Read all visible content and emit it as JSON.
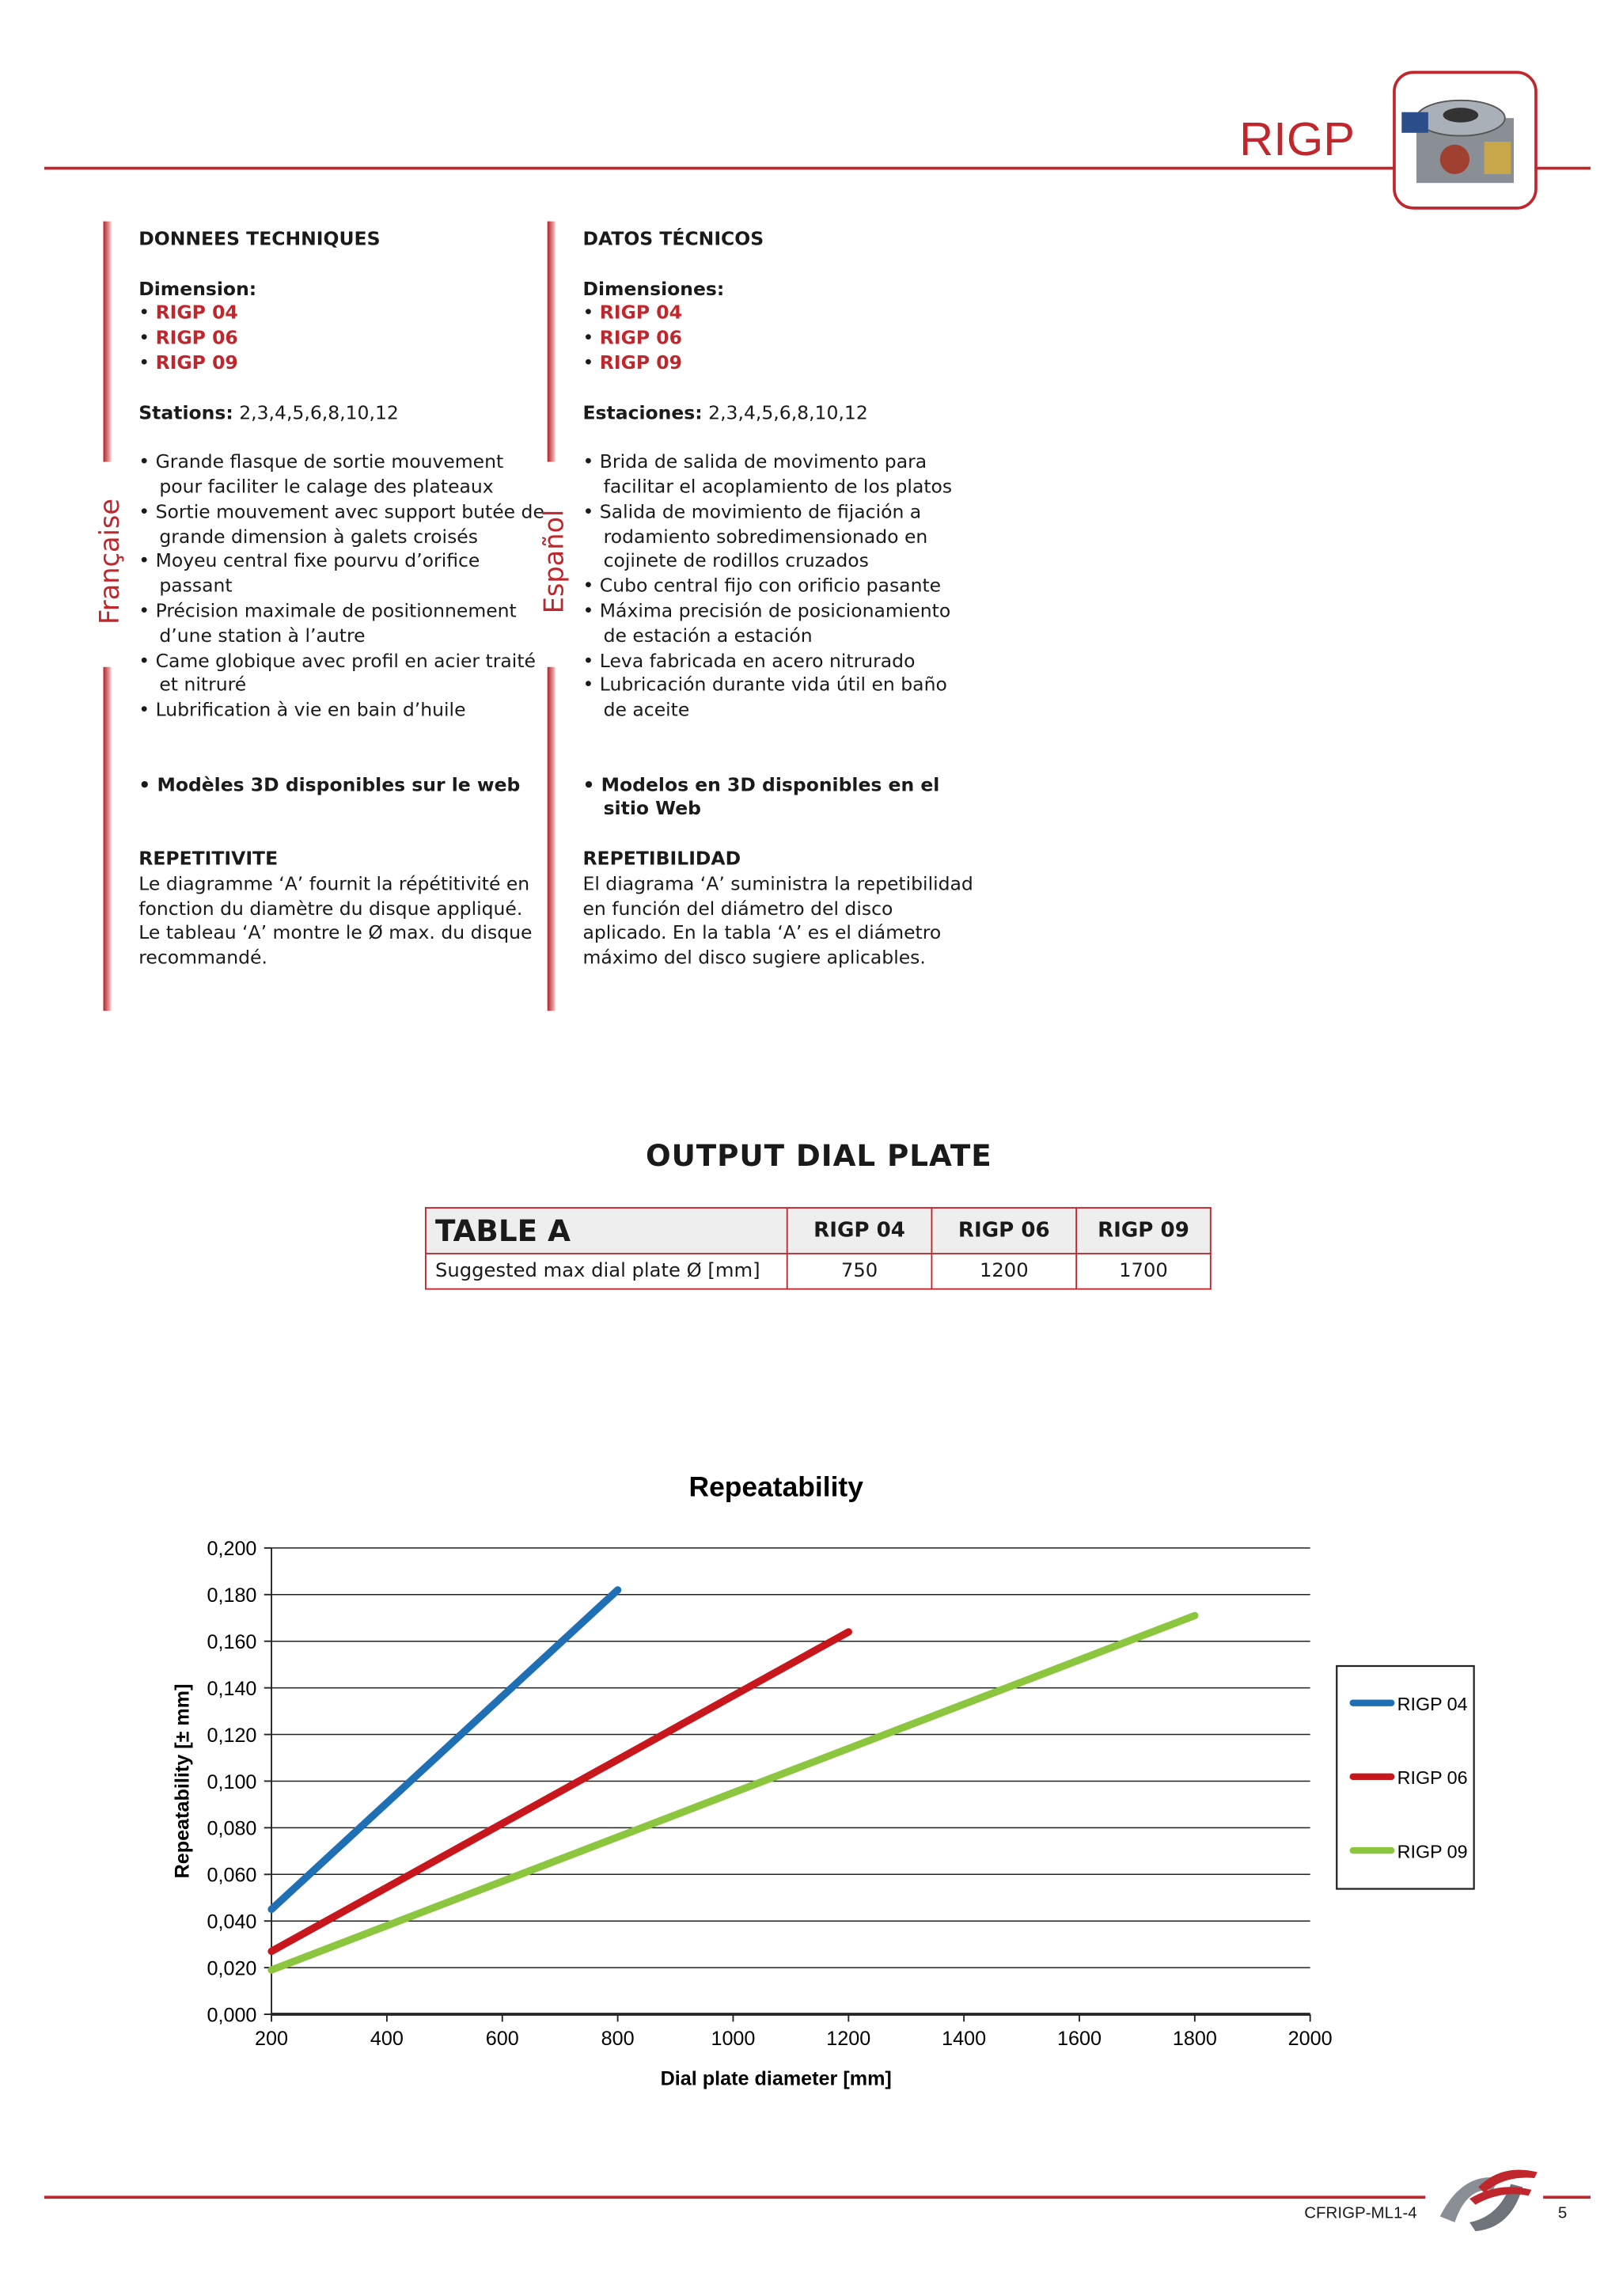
{
  "header": {
    "title": "RIGP"
  },
  "french": {
    "side_label": "Française",
    "heading": "DONNEES TECHNIQUES",
    "dimension_label": "Dimension:",
    "models": [
      "RIGP 04",
      "RIGP 06",
      "RIGP 09"
    ],
    "stations_label": "Stations:",
    "stations_value": " 2,3,4,5,6,8,10,12",
    "features": [
      "Grande flasque de sortie mouvement pour faciliter le calage des plateaux",
      "Sortie mouvement avec support butée de grande dimension à galets croisés",
      "Moyeu central fixe pourvu d’orifice passant",
      "Précision maximale de positionnement d’une station à l’autre",
      "Came globique avec profil en acier traité et nitruré",
      "Lubrification à vie en bain d’huile"
    ],
    "models_3d": "Modèles 3D disponibles sur le web",
    "repeat_heading": "REPETITIVITE",
    "repeat_text": "Le diagramme  ‘A’ fournit la répétitivité en fonction du diamètre du disque appliqué. Le tableau ‘A’ montre le Ø max. du disque recommandé."
  },
  "spanish": {
    "side_label": "Español",
    "heading": "DATOS TÉCNICOS",
    "dimension_label": "Dimensiones:",
    "models": [
      "RIGP 04",
      "RIGP 06",
      "RIGP 09"
    ],
    "stations_label": "Estaciones:",
    "stations_value": " 2,3,4,5,6,8,10,12",
    "features": [
      "Brida de salida de movimento para facilitar el acoplamiento de los platos",
      "Salida de movimiento de fijación a rodamiento sobredimensionado en cojinete de rodillos cruzados",
      "Cubo central fijo con orificio pasante",
      "Máxima precisión de posicionamiento de estación a estación",
      "Leva fabricada en acero nitrurado",
      "Lubricación durante vida útil en baño de aceite"
    ],
    "models_3d": "Modelos en 3D disponibles en el sitio Web",
    "repeat_heading": "REPETIBILIDAD",
    "repeat_text": "El diagrama ‘A’ suministra la repetibilidad  en función del diámetro del disco aplicado.  En la tabla ‘A’ es el diámetro máximo del disco sugiere aplicables."
  },
  "section_title": "OUTPUT DIAL PLATE",
  "table_a": {
    "title": "TABLE A",
    "columns": [
      "RIGP 04",
      "RIGP 06",
      "RIGP 09"
    ],
    "row_label": "Suggested max dial plate Ø [mm]",
    "values": [
      "750",
      "1200",
      "1700"
    ]
  },
  "chart_data": {
    "type": "line",
    "title": "Repeatability",
    "xlabel": "Dial plate diameter [mm]",
    "ylabel": "Repeatability  [± mm]",
    "xlim": [
      200,
      2000
    ],
    "ylim": [
      0,
      0.2
    ],
    "xticks": [
      "200",
      "400",
      "600",
      "800",
      "1000",
      "1200",
      "1400",
      "1600",
      "1800",
      "2000"
    ],
    "yticks": [
      "0,000",
      "0,020",
      "0,040",
      "0,060",
      "0,080",
      "0,100",
      "0,120",
      "0,140",
      "0,160",
      "0,180",
      "0,200"
    ],
    "grid": true,
    "legend": "right",
    "series": [
      {
        "name": "RIGP 04",
        "color": "#1f6fb5",
        "x": [
          200,
          800
        ],
        "y": [
          0.045,
          0.182
        ]
      },
      {
        "name": "RIGP 06",
        "color": "#c8161d",
        "x": [
          200,
          1200
        ],
        "y": [
          0.027,
          0.164
        ]
      },
      {
        "name": "RIGP 09",
        "color": "#8cc63f",
        "x": [
          200,
          1800
        ],
        "y": [
          0.019,
          0.171
        ]
      }
    ]
  },
  "footer": {
    "code": "CFRIGP-ML1-4",
    "page": "5"
  },
  "colors": {
    "accent": "#c0272d"
  }
}
